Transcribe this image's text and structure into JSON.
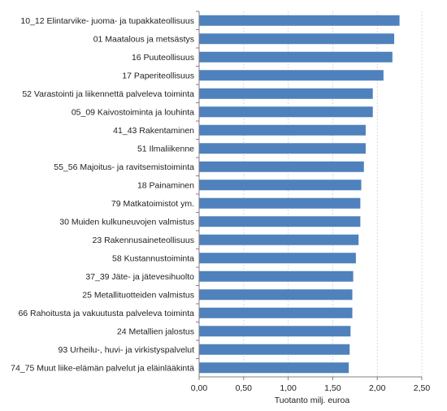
{
  "chart_data": {
    "type": "bar",
    "orientation": "horizontal",
    "categories": [
      "10_12 Elintarvike- juoma- ja tupakkateollisuus",
      "01 Maatalous ja metsästys",
      "16 Puuteollisuus",
      "17 Paperiteollisuus",
      "52 Varastointi ja liikennettä palveleva toiminta",
      "05_09 Kaivostoiminta ja louhinta",
      "41_43 Rakentaminen",
      "51 Ilmaliikenne",
      "55_56 Majoitus- ja ravitsemistoiminta",
      "18 Painaminen",
      "79 Matkatoimistot ym.",
      "30 Muiden kulkuneuvojen valmistus",
      "23 Rakennusaineteollisuus",
      "58 Kustannustoiminta",
      "37_39 Jäte- ja jätevesihuolto",
      "25 Metallituotteiden valmistus",
      "66 Rahoitusta ja vakuutusta palveleva toiminta",
      "24 Metallien jalostus",
      "93 Urheilu-, huvi- ja virkistyspalvelut",
      "74_75 Muut liike-elämän palvelut ja eläinlääkintä"
    ],
    "values": [
      2.25,
      2.19,
      2.17,
      2.07,
      1.95,
      1.95,
      1.87,
      1.87,
      1.85,
      1.82,
      1.81,
      1.81,
      1.79,
      1.76,
      1.73,
      1.72,
      1.72,
      1.7,
      1.69,
      1.68
    ],
    "xlabel": "Tuotanto milj. euroa",
    "xlim": [
      0,
      2.5
    ],
    "xticks": [
      "0,00",
      "0,50",
      "1,00",
      "1,50",
      "2,00",
      "2,50"
    ],
    "grid": true,
    "bar_color": "#4f81bd"
  }
}
